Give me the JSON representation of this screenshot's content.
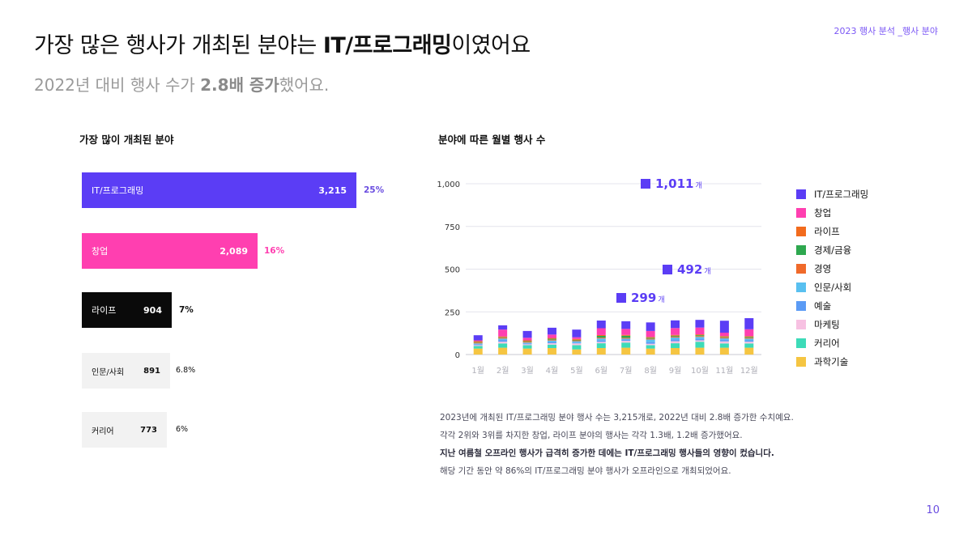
{
  "header": {
    "tag": "2023 행사 분석 _행사 분야",
    "headline_pre": "가장 많은 행사가 개최된 분야는 ",
    "headline_bold": "IT/프로그래밍",
    "headline_post": "이였어요",
    "sub_pre": "2022년 대비 행사 수가 ",
    "sub_bold": "2.8배 증가",
    "sub_post": "했어요."
  },
  "left_title": "가장 많이 개최된 분야",
  "right_title": "분야에 따른 월별 행사 수",
  "colors": {
    "purple": "#5b3df5",
    "pink": "#ff3fb0",
    "black": "#0a0a0a",
    "gray": "#f2f2f2",
    "pct_purple": "#6a4de0",
    "pct_pink": "#ff3fb0"
  },
  "bar_chart": {
    "type": "bar",
    "orientation": "horizontal",
    "items": [
      {
        "label": "IT/프로그래밍",
        "value": 3215,
        "value_text": "3,215",
        "pct": "25%"
      },
      {
        "label": "창업",
        "value": 2089,
        "value_text": "2,089",
        "pct": "16%"
      },
      {
        "label": "라이프",
        "value": 904,
        "value_text": "904",
        "pct": "7%"
      },
      {
        "label": "인문/사회",
        "value": 891,
        "value_text": "891",
        "pct": "6.8%"
      },
      {
        "label": "커리어",
        "value": 773,
        "value_text": "773",
        "pct": "6%"
      }
    ]
  },
  "chart_data": {
    "type": "bar",
    "stacked": true,
    "categories": [
      "1월",
      "2월",
      "3월",
      "4월",
      "5월",
      "6월",
      "7월",
      "8월",
      "9월",
      "10월",
      "11월",
      "12월"
    ],
    "y_ticks": [
      "1,000",
      "750",
      "500",
      "250",
      "0"
    ],
    "ylim": [
      0,
      1000
    ],
    "series": [
      {
        "name": "과학기술",
        "color": "#f5c542",
        "values": [
          35,
          40,
          35,
          38,
          30,
          38,
          40,
          35,
          38,
          40,
          40,
          40
        ]
      },
      {
        "name": "커리어",
        "color": "#3ddbb8",
        "values": [
          15,
          25,
          20,
          20,
          25,
          28,
          30,
          20,
          28,
          35,
          25,
          25
        ]
      },
      {
        "name": "마케팅",
        "color": "#f7c1e2",
        "values": [
          5,
          10,
          5,
          8,
          10,
          8,
          10,
          8,
          12,
          8,
          12,
          10
        ]
      },
      {
        "name": "예술",
        "color": "#5b9bf5",
        "values": [
          5,
          10,
          5,
          8,
          5,
          10,
          8,
          10,
          10,
          10,
          10,
          8
        ]
      },
      {
        "name": "인문/사회",
        "color": "#59c0f0",
        "values": [
          5,
          8,
          5,
          8,
          8,
          10,
          5,
          15,
          12,
          10,
          8,
          10
        ]
      },
      {
        "name": "경영",
        "color": "#f06a2a",
        "values": [
          5,
          5,
          5,
          5,
          5,
          5,
          5,
          5,
          5,
          5,
          5,
          5
        ]
      },
      {
        "name": "경제/금융",
        "color": "#2ea84f",
        "values": [
          3,
          3,
          3,
          5,
          3,
          10,
          12,
          5,
          5,
          5,
          3,
          5
        ]
      },
      {
        "name": "라이프",
        "color": "#f26b1d",
        "values": [
          5,
          5,
          5,
          5,
          5,
          5,
          5,
          5,
          5,
          5,
          5,
          5
        ]
      },
      {
        "name": "창업",
        "color": "#ff3fb0",
        "values": [
          5,
          40,
          15,
          20,
          10,
          40,
          35,
          35,
          40,
          40,
          20,
          40
        ]
      },
      {
        "name": "IT/프로그래밍",
        "color": "#5b3df5",
        "values": [
          30,
          25,
          40,
          40,
          45,
          45,
          45,
          50,
          45,
          45,
          70,
          65
        ]
      }
    ],
    "annotations": [
      {
        "text": "1,011",
        "unit": "개"
      },
      {
        "text": "492",
        "unit": "개"
      },
      {
        "text": "299",
        "unit": "개"
      }
    ]
  },
  "legend": [
    {
      "label": "IT/프로그래밍",
      "color": "#5b3df5"
    },
    {
      "label": "창업",
      "color": "#ff3fb0"
    },
    {
      "label": "라이프",
      "color": "#f26b1d"
    },
    {
      "label": "경제/금융",
      "color": "#2ea84f"
    },
    {
      "label": "경영",
      "color": "#f06a2a"
    },
    {
      "label": "인문/사회",
      "color": "#59c0f0"
    },
    {
      "label": "예술",
      "color": "#5b9bf5"
    },
    {
      "label": "마케팅",
      "color": "#f7c1e2"
    },
    {
      "label": "커리어",
      "color": "#3ddbb8"
    },
    {
      "label": "과학기술",
      "color": "#f5c542"
    }
  ],
  "notes": [
    "2023년에 개최된 IT/프로그래밍 분야 행사 수는 3,215개로, 2022년 대비 2.8배 증가한 수치예요.",
    "각각 2위와 3위를 차지한 창업, 라이프 분야의 행사는 각각 1.3배, 1.2배 증가했어요.",
    "지난 여름철 오프라인 행사가 급격히 증가한 데에는 IT/프로그래밍 행사들의 영향이 컸습니다.",
    "해당 기간 동안 약 86%의 IT/프로그래밍 분야 행사가 오프라인으로 개최되었어요."
  ],
  "page_number": "10"
}
